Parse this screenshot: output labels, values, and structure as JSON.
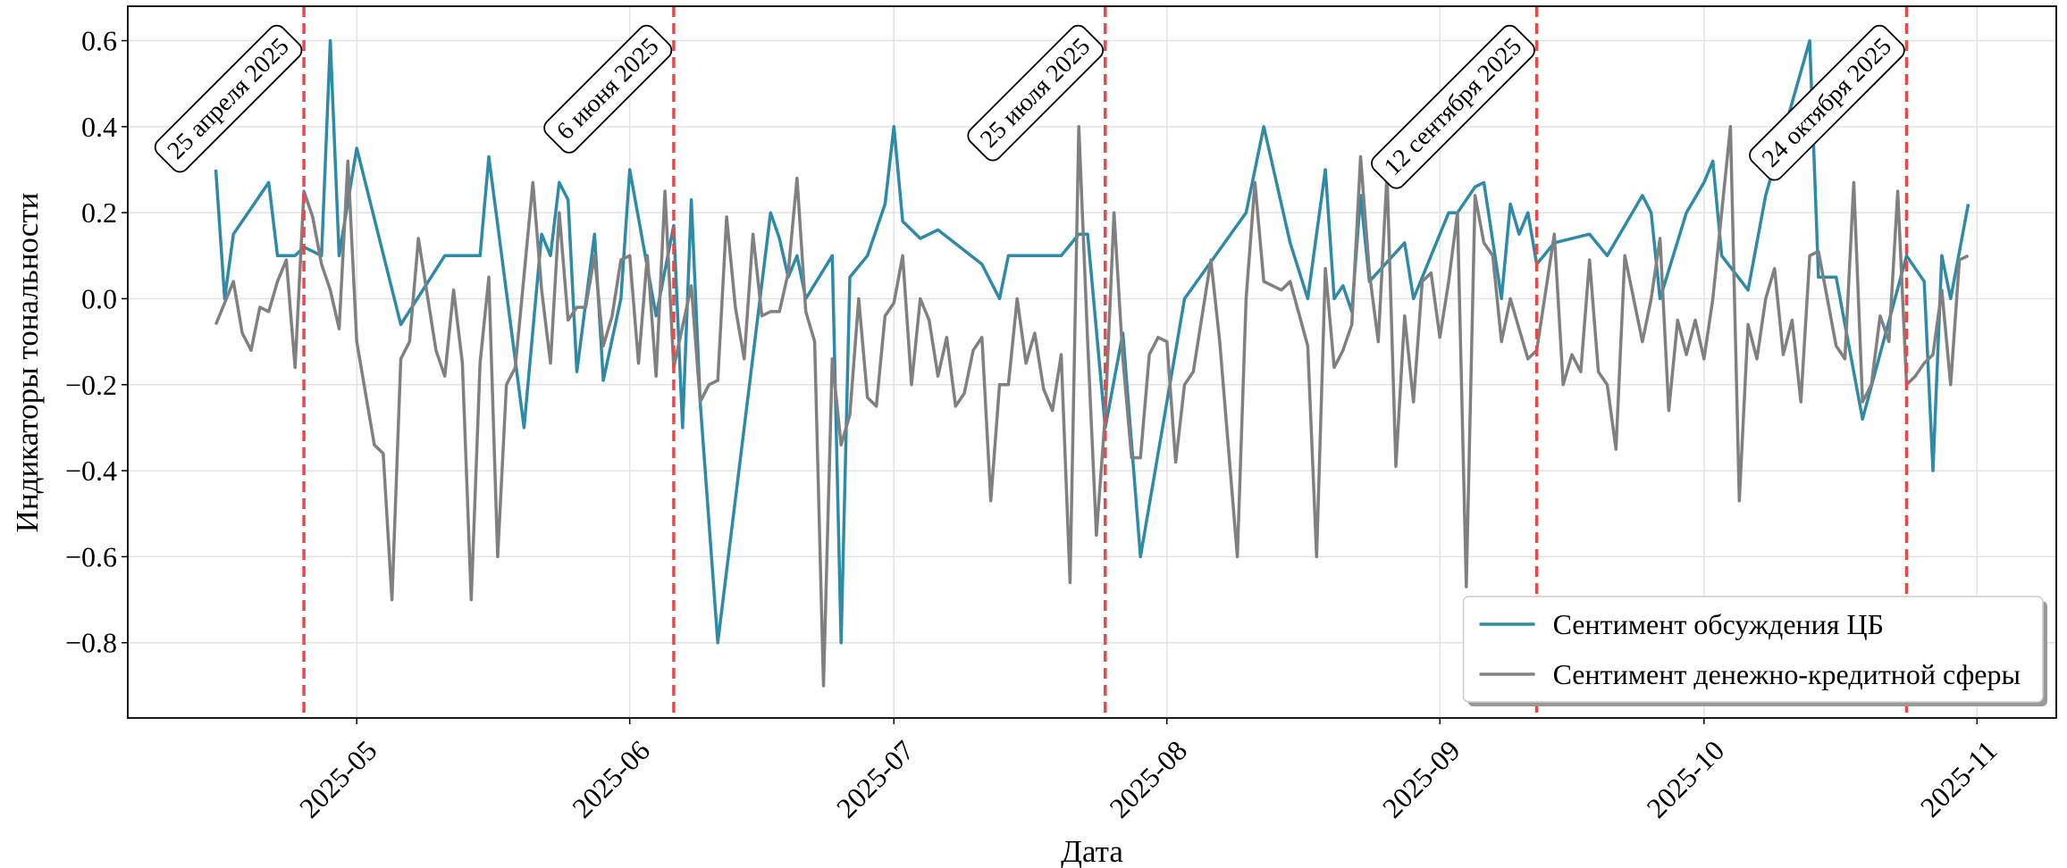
{
  "chart_data": {
    "type": "line",
    "xlabel": "Дата",
    "ylabel": "Индикаторы тональности",
    "xlim": [
      "2025-04-05",
      "2025-11-10"
    ],
    "ylim": [
      -0.975,
      0.68
    ],
    "xticks": [
      {
        "value": "2025-05-01",
        "label": "2025-05"
      },
      {
        "value": "2025-06-01",
        "label": "2025-06"
      },
      {
        "value": "2025-07-01",
        "label": "2025-07"
      },
      {
        "value": "2025-08-01",
        "label": "2025-08"
      },
      {
        "value": "2025-09-01",
        "label": "2025-09"
      },
      {
        "value": "2025-10-01",
        "label": "2025-10"
      },
      {
        "value": "2025-11-01",
        "label": "2025-11"
      }
    ],
    "yticks": [
      {
        "value": -0.8,
        "label": "−0.8"
      },
      {
        "value": -0.6,
        "label": "−0.6"
      },
      {
        "value": -0.4,
        "label": "−0.4"
      },
      {
        "value": -0.2,
        "label": "−0.2"
      },
      {
        "value": 0,
        "label": "0.0"
      },
      0.2,
      0.4,
      0.6
    ],
    "grid": true,
    "legend": "lower right",
    "annotations": [
      {
        "x": "2025-04-25",
        "label": "25 апреля 2025",
        "color": "#e8494a"
      },
      {
        "x": "2025-06-06",
        "label": "6 июня 2025",
        "color": "#e8494a"
      },
      {
        "x": "2025-07-25",
        "label": "25 июля 2025",
        "color": "#e8494a"
      },
      {
        "x": "2025-09-12",
        "label": "12 сентября 2025",
        "color": "#e8494a"
      },
      {
        "x": "2025-10-24",
        "label": "24 октября 2025",
        "color": "#e8494a"
      }
    ],
    "series": [
      {
        "name": "Сентимент обсуждения ЦБ",
        "color": "#2e8ba8",
        "x": [
          "2025-04-15",
          "2025-04-16",
          "2025-04-17",
          "2025-04-21",
          "2025-04-22",
          "2025-04-24",
          "2025-04-25",
          "2025-04-27",
          "2025-04-28",
          "2025-04-29",
          "2025-05-01",
          "2025-05-06",
          "2025-05-11",
          "2025-05-15",
          "2025-05-16",
          "2025-05-20",
          "2025-05-22",
          "2025-05-23",
          "2025-05-24",
          "2025-05-25",
          "2025-05-26",
          "2025-05-28",
          "2025-05-29",
          "2025-05-31",
          "2025-06-01",
          "2025-06-04",
          "2025-06-06",
          "2025-06-07",
          "2025-06-08",
          "2025-06-09",
          "2025-06-11",
          "2025-06-17",
          "2025-06-18",
          "2025-06-19",
          "2025-06-20",
          "2025-06-21",
          "2025-06-24",
          "2025-06-25",
          "2025-06-26",
          "2025-06-28",
          "2025-06-30",
          "2025-07-01",
          "2025-07-02",
          "2025-07-04",
          "2025-07-06",
          "2025-07-11",
          "2025-07-13",
          "2025-07-14",
          "2025-07-20",
          "2025-07-22",
          "2025-07-23",
          "2025-07-25",
          "2025-07-27",
          "2025-07-29",
          "2025-08-03",
          "2025-08-10",
          "2025-08-12",
          "2025-08-15",
          "2025-08-17",
          "2025-08-19",
          "2025-08-20",
          "2025-08-21",
          "2025-08-22",
          "2025-08-23",
          "2025-08-24",
          "2025-08-28",
          "2025-08-29",
          "2025-08-31",
          "2025-09-02",
          "2025-09-03",
          "2025-09-05",
          "2025-09-06",
          "2025-09-08",
          "2025-09-09",
          "2025-09-10",
          "2025-09-11",
          "2025-09-12",
          "2025-09-14",
          "2025-09-18",
          "2025-09-20",
          "2025-09-24",
          "2025-09-25",
          "2025-09-26",
          "2025-09-29",
          "2025-10-01",
          "2025-10-02",
          "2025-10-03",
          "2025-10-06",
          "2025-10-08",
          "2025-10-13",
          "2025-10-14",
          "2025-10-16",
          "2025-10-19",
          "2025-10-24",
          "2025-10-26",
          "2025-10-27",
          "2025-10-28",
          "2025-10-29",
          "2025-10-31"
        ],
        "values": [
          0.3,
          0.0,
          0.15,
          0.27,
          0.1,
          0.1,
          0.12,
          0.1,
          0.6,
          0.1,
          0.35,
          -0.06,
          0.1,
          0.1,
          0.33,
          -0.3,
          0.15,
          0.1,
          0.27,
          0.23,
          -0.17,
          0.15,
          -0.19,
          0.0,
          0.3,
          -0.04,
          0.17,
          -0.3,
          0.23,
          -0.24,
          -0.8,
          0.2,
          0.14,
          0.05,
          0.1,
          0.0,
          0.1,
          -0.8,
          0.05,
          0.1,
          0.22,
          0.4,
          0.18,
          0.14,
          0.16,
          0.08,
          0.0,
          0.1,
          0.1,
          0.15,
          0.15,
          -0.3,
          -0.08,
          -0.6,
          0.0,
          0.2,
          0.4,
          0.13,
          0.0,
          0.3,
          0.0,
          0.03,
          -0.03,
          0.24,
          0.04,
          0.13,
          0.0,
          0.1,
          0.2,
          0.2,
          0.26,
          0.27,
          0.0,
          0.22,
          0.15,
          0.2,
          0.08,
          0.13,
          0.15,
          0.1,
          0.24,
          0.2,
          0.0,
          0.2,
          0.27,
          0.32,
          0.1,
          0.02,
          0.24,
          0.6,
          0.05,
          0.05,
          -0.28,
          0.1,
          0.04,
          -0.4,
          0.1,
          0.0,
          0.22
        ]
      },
      {
        "name": "Сентимент денежно-кредитной сферы",
        "color": "#808080",
        "x": [
          "2025-04-15",
          "2025-04-17",
          "2025-04-18",
          "2025-04-19",
          "2025-04-20",
          "2025-04-21",
          "2025-04-22",
          "2025-04-23",
          "2025-04-24",
          "2025-04-25",
          "2025-04-26",
          "2025-04-27",
          "2025-04-28",
          "2025-04-29",
          "2025-04-30",
          "2025-05-01",
          "2025-05-03",
          "2025-05-04",
          "2025-05-05",
          "2025-05-06",
          "2025-05-07",
          "2025-05-08",
          "2025-05-10",
          "2025-05-11",
          "2025-05-12",
          "2025-05-13",
          "2025-05-14",
          "2025-05-15",
          "2025-05-16",
          "2025-05-17",
          "2025-05-18",
          "2025-05-19",
          "2025-05-21",
          "2025-05-22",
          "2025-05-23",
          "2025-05-24",
          "2025-05-25",
          "2025-05-26",
          "2025-05-27",
          "2025-05-28",
          "2025-05-29",
          "2025-05-30",
          "2025-05-31",
          "2025-06-01",
          "2025-06-02",
          "2025-06-03",
          "2025-06-04",
          "2025-06-05",
          "2025-06-06",
          "2025-06-08",
          "2025-06-09",
          "2025-06-10",
          "2025-06-11",
          "2025-06-12",
          "2025-06-13",
          "2025-06-14",
          "2025-06-15",
          "2025-06-16",
          "2025-06-17",
          "2025-06-18",
          "2025-06-19",
          "2025-06-20",
          "2025-06-21",
          "2025-06-22",
          "2025-06-23",
          "2025-06-24",
          "2025-06-25",
          "2025-06-26",
          "2025-06-27",
          "2025-06-28",
          "2025-06-29",
          "2025-06-30",
          "2025-07-01",
          "2025-07-02",
          "2025-07-03",
          "2025-07-04",
          "2025-07-05",
          "2025-07-06",
          "2025-07-07",
          "2025-07-08",
          "2025-07-09",
          "2025-07-10",
          "2025-07-11",
          "2025-07-12",
          "2025-07-13",
          "2025-07-14",
          "2025-07-15",
          "2025-07-16",
          "2025-07-17",
          "2025-07-18",
          "2025-07-19",
          "2025-07-20",
          "2025-07-21",
          "2025-07-22",
          "2025-07-23",
          "2025-07-24",
          "2025-07-25",
          "2025-07-26",
          "2025-07-27",
          "2025-07-28",
          "2025-07-29",
          "2025-07-30",
          "2025-07-31",
          "2025-08-01",
          "2025-08-02",
          "2025-08-03",
          "2025-08-04",
          "2025-08-06",
          "2025-08-07",
          "2025-08-09",
          "2025-08-10",
          "2025-08-11",
          "2025-08-12",
          "2025-08-14",
          "2025-08-15",
          "2025-08-17",
          "2025-08-18",
          "2025-08-19",
          "2025-08-20",
          "2025-08-21",
          "2025-08-22",
          "2025-08-23",
          "2025-08-24",
          "2025-08-25",
          "2025-08-26",
          "2025-08-27",
          "2025-08-28",
          "2025-08-29",
          "2025-08-30",
          "2025-08-31",
          "2025-09-01",
          "2025-09-02",
          "2025-09-03",
          "2025-09-04",
          "2025-09-05",
          "2025-09-06",
          "2025-09-07",
          "2025-09-08",
          "2025-09-09",
          "2025-09-10",
          "2025-09-11",
          "2025-09-12",
          "2025-09-14",
          "2025-09-15",
          "2025-09-16",
          "2025-09-17",
          "2025-09-18",
          "2025-09-19",
          "2025-09-20",
          "2025-09-21",
          "2025-09-22",
          "2025-09-24",
          "2025-09-25",
          "2025-09-26",
          "2025-09-27",
          "2025-09-28",
          "2025-09-29",
          "2025-09-30",
          "2025-10-01",
          "2025-10-02",
          "2025-10-04",
          "2025-10-05",
          "2025-10-06",
          "2025-10-07",
          "2025-10-08",
          "2025-10-09",
          "2025-10-10",
          "2025-10-11",
          "2025-10-12",
          "2025-10-13",
          "2025-10-14",
          "2025-10-15",
          "2025-10-16",
          "2025-10-17",
          "2025-10-18",
          "2025-10-19",
          "2025-10-20",
          "2025-10-21",
          "2025-10-22",
          "2025-10-23",
          "2025-10-24",
          "2025-10-25",
          "2025-10-26",
          "2025-10-27",
          "2025-10-28",
          "2025-10-29",
          "2025-10-30",
          "2025-10-31"
        ],
        "values": [
          -0.06,
          0.04,
          -0.08,
          -0.12,
          -0.02,
          -0.03,
          0.04,
          0.09,
          -0.16,
          0.25,
          0.19,
          0.08,
          0.02,
          -0.07,
          0.32,
          -0.1,
          -0.34,
          -0.36,
          -0.7,
          -0.14,
          -0.1,
          0.14,
          -0.12,
          -0.18,
          0.02,
          -0.15,
          -0.7,
          -0.15,
          0.05,
          -0.6,
          -0.2,
          -0.16,
          0.27,
          0.02,
          -0.15,
          0.2,
          -0.05,
          -0.02,
          -0.02,
          0.1,
          -0.11,
          -0.04,
          0.09,
          0.1,
          -0.15,
          0.1,
          -0.18,
          0.25,
          -0.16,
          0.03,
          -0.24,
          -0.2,
          -0.19,
          0.19,
          -0.02,
          -0.14,
          0.15,
          -0.04,
          -0.03,
          -0.03,
          0.06,
          0.28,
          -0.03,
          -0.1,
          -0.9,
          -0.14,
          -0.34,
          -0.27,
          0.0,
          -0.23,
          -0.25,
          -0.04,
          -0.01,
          0.1,
          -0.2,
          0.0,
          -0.05,
          -0.18,
          -0.09,
          -0.25,
          -0.22,
          -0.12,
          -0.09,
          -0.47,
          -0.2,
          -0.2,
          0.0,
          -0.15,
          -0.08,
          -0.21,
          -0.26,
          -0.13,
          -0.66,
          0.4,
          -0.1,
          -0.55,
          -0.27,
          0.2,
          -0.14,
          -0.37,
          -0.37,
          -0.13,
          -0.09,
          -0.1,
          -0.38,
          -0.2,
          -0.17,
          0.09,
          -0.1,
          -0.6,
          0.0,
          0.27,
          0.04,
          0.02,
          0.04,
          -0.11,
          -0.6,
          0.07,
          -0.16,
          -0.12,
          -0.06,
          0.33,
          0.06,
          -0.1,
          0.29,
          -0.39,
          -0.04,
          -0.24,
          0.04,
          0.06,
          -0.09,
          0.04,
          0.2,
          -0.67,
          0.24,
          0.13,
          0.1,
          -0.1,
          0.0,
          -0.07,
          -0.14,
          -0.12,
          0.15,
          -0.2,
          -0.13,
          -0.17,
          0.09,
          -0.17,
          -0.2,
          -0.35,
          0.1,
          -0.1,
          0.0,
          0.14,
          -0.26,
          -0.05,
          -0.13,
          -0.05,
          -0.14,
          0.0,
          0.4,
          -0.47,
          -0.06,
          -0.14,
          0.0,
          0.07,
          -0.13,
          -0.05,
          -0.24,
          0.1,
          0.11,
          0.0,
          -0.11,
          -0.14,
          0.27,
          -0.24,
          -0.2,
          -0.04,
          -0.1,
          0.25,
          -0.2,
          -0.18,
          -0.15,
          -0.13,
          0.02,
          -0.2,
          0.09,
          0.1
        ]
      }
    ]
  }
}
